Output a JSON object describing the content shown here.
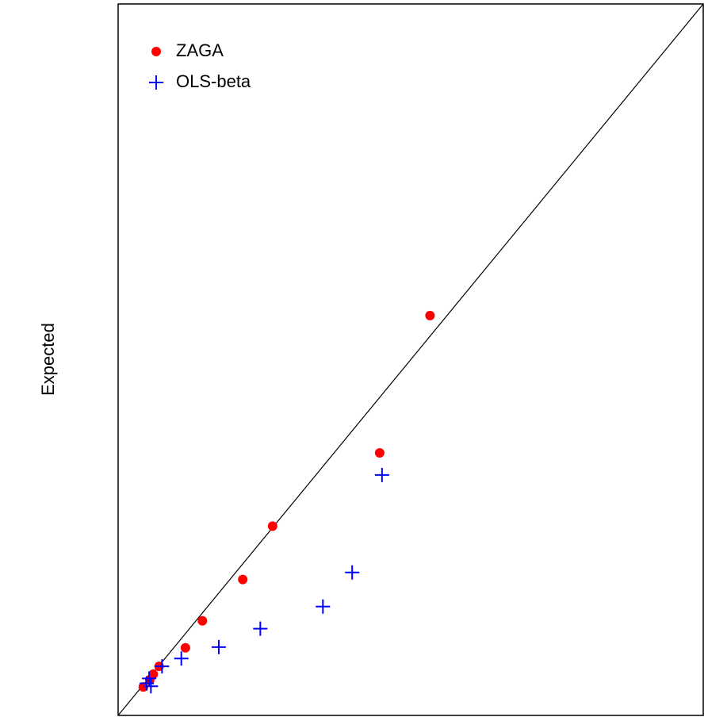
{
  "chart_data": {
    "type": "scatter",
    "y_label": "Expected",
    "xlim": [
      0,
      100
    ],
    "ylim": [
      0,
      100
    ],
    "legend": "top-left",
    "series": [
      {
        "name": "ZAGA",
        "color": "#ff0000",
        "marker": "circle",
        "x": [
          53.3,
          44.7,
          26.4,
          21.3,
          14.4,
          11.5,
          7.0,
          6.0,
          5.4,
          4.3
        ],
        "values": [
          56.2,
          36.9,
          26.6,
          19.1,
          13.3,
          9.5,
          6.9,
          5.8,
          5.0,
          4.0
        ]
      },
      {
        "name": "OLS-beta",
        "color": "#0000ff",
        "marker": "plus",
        "x": [
          45.1,
          40.0,
          35.0,
          24.3,
          17.2,
          10.8,
          7.5,
          5.3,
          4.9,
          5.6
        ],
        "values": [
          33.8,
          20.1,
          15.3,
          12.2,
          9.6,
          8.0,
          6.9,
          5.2,
          4.5,
          4.1
        ]
      }
    ]
  }
}
